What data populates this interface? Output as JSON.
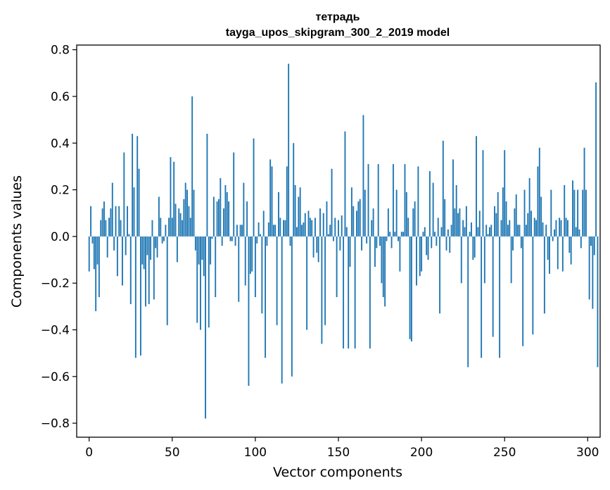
{
  "chart_data": {
    "type": "bar",
    "title": "тетрадь",
    "subtitle": "tayga_upos_skipgram_300_2_2019 model",
    "xlabel": "Vector components",
    "ylabel": "Components values",
    "xlim": [
      -7.5,
      307.5
    ],
    "ylim": [
      -0.86,
      0.82
    ],
    "xticks": [
      0,
      50,
      100,
      150,
      200,
      250,
      300
    ],
    "yticks": [
      0.8,
      0.6,
      0.4,
      0.2,
      0.0,
      -0.2,
      -0.4,
      -0.6,
      -0.8
    ],
    "ytick_labels": [
      "0.8",
      "0.6",
      "0.4",
      "0.2",
      "0.0",
      "−0.2",
      "−0.4",
      "−0.6",
      "−0.8"
    ],
    "bar_color": "#1f77b4",
    "values": [
      -0.15,
      0.13,
      -0.03,
      -0.14,
      -0.32,
      -0.12,
      -0.26,
      0.07,
      0.12,
      0.15,
      0.07,
      -0.09,
      0.08,
      0.12,
      0.23,
      -0.06,
      0.13,
      -0.17,
      0.13,
      0.07,
      -0.21,
      0.36,
      -0.08,
      0.13,
      0.01,
      -0.29,
      0.44,
      0.21,
      -0.52,
      0.43,
      0.29,
      -0.51,
      -0.12,
      -0.14,
      -0.3,
      -0.08,
      -0.29,
      -0.1,
      0.07,
      -0.27,
      -0.05,
      -0.09,
      0.17,
      0.08,
      -0.03,
      -0.02,
      0.05,
      -0.38,
      0.08,
      0.34,
      0.08,
      0.32,
      0.14,
      -0.11,
      0.12,
      0.1,
      0.07,
      0.16,
      0.23,
      0.2,
      0.13,
      0.08,
      0.6,
      0.2,
      -0.06,
      -0.37,
      -0.12,
      -0.4,
      -0.1,
      -0.17,
      -0.78,
      0.44,
      -0.39,
      -0.12,
      -0.01,
      0.17,
      -0.26,
      0.15,
      0.16,
      0.25,
      -0.04,
      0.12,
      0.22,
      0.19,
      0.15,
      -0.02,
      -0.02,
      0.36,
      -0.04,
      0.05,
      -0.28,
      0.05,
      0.05,
      0.23,
      -0.21,
      0.15,
      -0.64,
      -0.16,
      -0.15,
      0.42,
      -0.26,
      -0.03,
      0.06,
      0.01,
      -0.33,
      0.11,
      -0.52,
      -0.04,
      0.06,
      0.33,
      0.3,
      0.05,
      0.05,
      -0.38,
      0.19,
      0.08,
      -0.63,
      0.07,
      0.07,
      0.3,
      0.74,
      -0.04,
      -0.6,
      0.4,
      0.22,
      0.04,
      0.17,
      0.21,
      0.05,
      0.06,
      0.1,
      -0.4,
      0.11,
      0.08,
      0.07,
      -0.09,
      0.08,
      -0.07,
      -0.11,
      0.12,
      -0.46,
      0.1,
      -0.38,
      0.15,
      0.01,
      0.05,
      0.29,
      -0.02,
      0.08,
      -0.26,
      0.07,
      -0.06,
      0.09,
      -0.48,
      0.45,
      0.04,
      -0.48,
      -0.13,
      0.21,
      0.13,
      -0.48,
      0.11,
      0.15,
      0.16,
      -0.06,
      0.52,
      0.2,
      -0.03,
      0.31,
      -0.48,
      0.07,
      0.12,
      -0.13,
      -0.05,
      0.31,
      -0.04,
      -0.2,
      -0.26,
      -0.3,
      -0.02,
      0.12,
      0.02,
      -0.05,
      0.31,
      0.02,
      0.2,
      -0.02,
      -0.15,
      0.02,
      0.02,
      0.31,
      0.19,
      0.08,
      -0.44,
      -0.45,
      0.12,
      0.15,
      -0.21,
      0.3,
      -0.17,
      -0.15,
      0.02,
      0.04,
      -0.08,
      -0.1,
      0.28,
      -0.05,
      0.23,
      0.02,
      -0.04,
      0.08,
      -0.33,
      0.04,
      0.41,
      0.16,
      -0.06,
      0.03,
      -0.07,
      0.05,
      0.33,
      0.12,
      0.22,
      0.1,
      0.12,
      -0.2,
      0.07,
      0.04,
      0.13,
      -0.56,
      0.02,
      0.06,
      -0.1,
      -0.09,
      0.43,
      0.04,
      0.11,
      -0.52,
      0.37,
      -0.2,
      0.05,
      0.01,
      0.04,
      0.05,
      -0.43,
      0.13,
      0.1,
      0.19,
      -0.52,
      0.07,
      0.21,
      0.37,
      0.15,
      0.05,
      0.07,
      -0.2,
      -0.06,
      0.12,
      0.18,
      0.05,
      0.05,
      -0.05,
      -0.47,
      0.2,
      0.05,
      0.1,
      0.25,
      0.11,
      -0.42,
      0.08,
      0.07,
      0.3,
      0.38,
      0.17,
      0.06,
      -0.33,
      0.05,
      -0.1,
      -0.16,
      0.2,
      -0.02,
      0.03,
      0.07,
      -0.14,
      0.08,
      0.07,
      -0.15,
      0.22,
      0.08,
      0.07,
      -0.07,
      -0.12,
      0.24,
      0.2,
      0.04,
      0.2,
      0.03,
      -0.05,
      0.2,
      0.38,
      0.2,
      0.0,
      -0.27,
      -0.04,
      -0.31,
      -0.08,
      0.66,
      -0.56
    ]
  }
}
